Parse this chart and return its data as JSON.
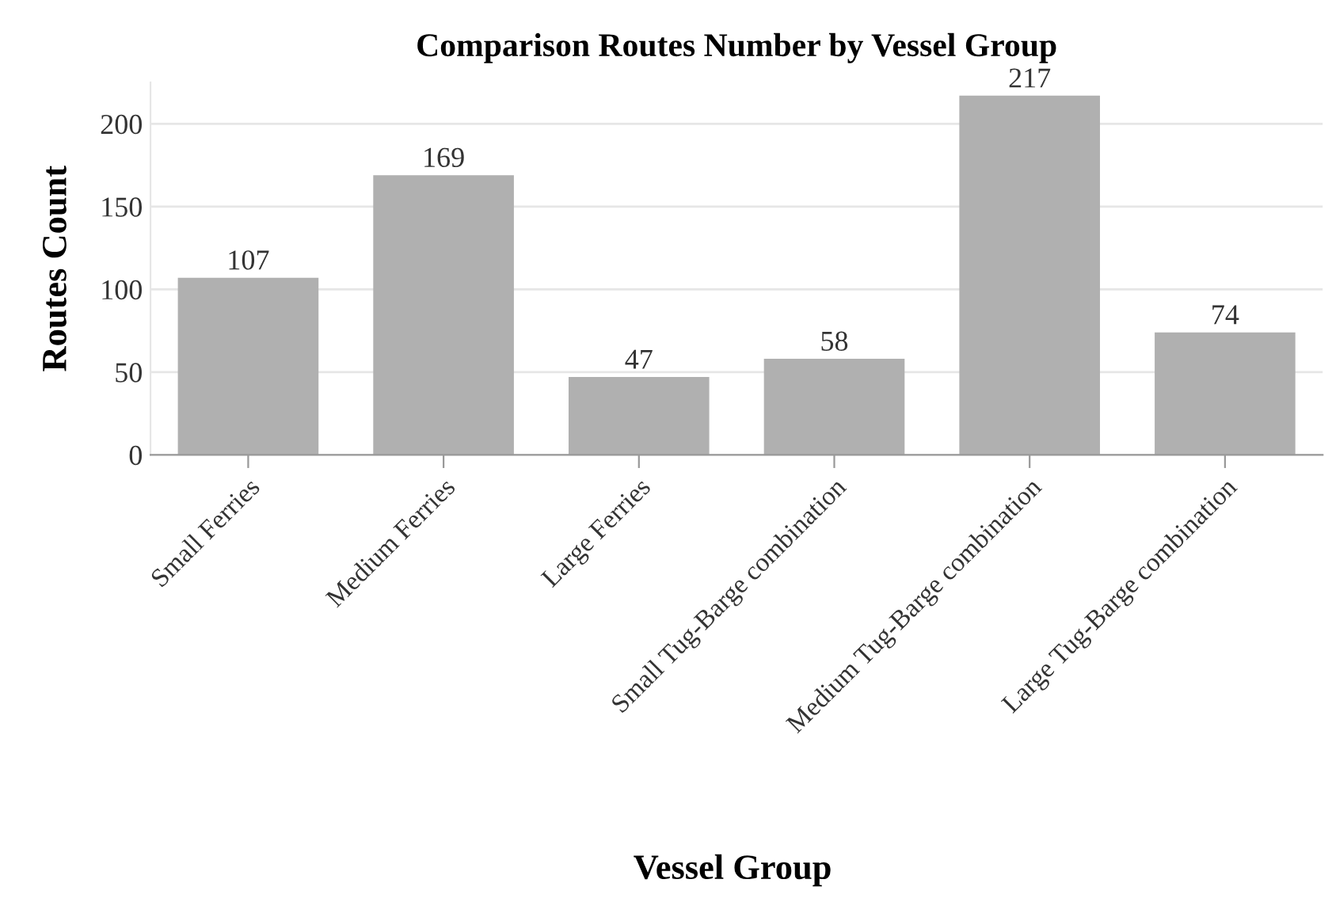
{
  "chart_data": {
    "type": "bar",
    "title": "Comparison Routes Number by Vessel Group",
    "xlabel": "Vessel Group",
    "ylabel": "Routes Count",
    "categories": [
      "Small Ferries",
      "Medium Ferries",
      "Large Ferries",
      "Small Tug-Barge combination",
      "Medium Tug-Barge combination",
      "Large Tug-Barge combination"
    ],
    "values": [
      107,
      169,
      47,
      58,
      217,
      74
    ],
    "color": "#b0b0b0",
    "ylim": [
      0,
      225
    ],
    "yticks": [
      0,
      50,
      100,
      150,
      200
    ],
    "grid": "y",
    "data_labels": true
  }
}
